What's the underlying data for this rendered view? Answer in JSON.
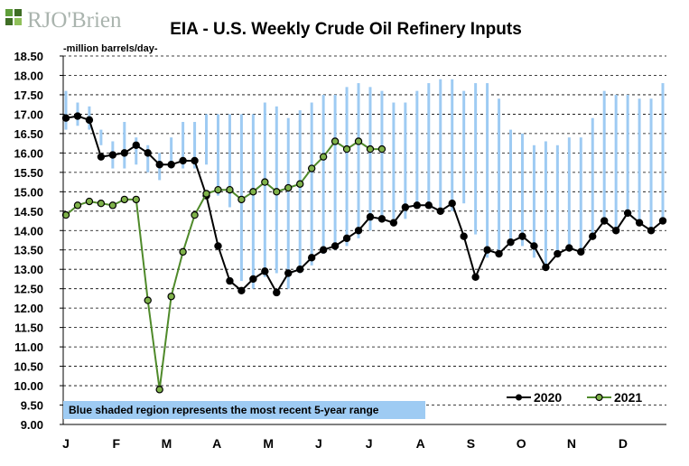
{
  "logo": {
    "text": "RJO'Brien"
  },
  "colors": {
    "range": "#9ecbf3",
    "series_2020": "#000000",
    "series_2021_line": "#4f8a2a",
    "series_2021_marker": "#7fb24a",
    "note_bg": "#9ecbf3"
  },
  "chart_data": {
    "type": "line",
    "title": "EIA - U.S. Weekly Crude Oil Refinery Inputs",
    "ylabel": "-million barrels/day-",
    "xlabel": "",
    "ylim": [
      9.0,
      18.5
    ],
    "ystep": 0.5,
    "ytick_labels": [
      "9.00",
      "9.50",
      "10.00",
      "10.50",
      "11.00",
      "11.50",
      "12.00",
      "12.50",
      "13.00",
      "13.50",
      "14.00",
      "14.50",
      "15.00",
      "15.50",
      "16.00",
      "16.50",
      "17.00",
      "17.50",
      "18.00",
      "18.50"
    ],
    "xtick_labels": [
      "J",
      "F",
      "M",
      "A",
      "M",
      "J",
      "J",
      "A",
      "S",
      "O",
      "N",
      "D"
    ],
    "xtick_weeks": [
      1,
      5.3,
      9.6,
      13.9,
      18.3,
      22.6,
      26.9,
      31.3,
      35.6,
      39.9,
      44.2,
      48.6
    ],
    "weeks": 52,
    "grid": true,
    "legend_position": "bottom-right",
    "annotation": "Blue shaded region represents the most recent 5-year range",
    "range_5yr": {
      "name": "5-year range",
      "low": [
        16.6,
        16.7,
        16.6,
        16.2,
        15.6,
        15.6,
        15.7,
        15.5,
        15.3,
        15.6,
        15.6,
        15.6,
        15.7,
        14.9,
        14.6,
        12.7,
        12.5,
        12.8,
        12.9,
        12.5,
        12.9,
        13.1,
        13.4,
        13.5,
        13.6,
        13.8,
        14.0,
        14.3,
        14.3,
        14.3,
        14.6,
        14.6,
        14.6,
        14.5,
        14.7,
        13.9,
        13.3,
        13.5,
        13.6,
        13.6,
        13.3,
        13.0,
        13.4,
        13.6,
        13.5,
        13.8,
        14.3,
        14.0,
        14.5,
        14.2,
        14.0,
        14.3
      ],
      "high": [
        17.6,
        17.3,
        17.2,
        16.6,
        16.3,
        16.8,
        16.4,
        16.2,
        16.0,
        16.4,
        16.8,
        16.8,
        17.0,
        17.0,
        17.0,
        17.0,
        17.0,
        17.3,
        17.2,
        16.9,
        17.1,
        17.3,
        17.5,
        17.5,
        17.7,
        17.8,
        17.7,
        17.6,
        17.3,
        17.3,
        17.6,
        17.8,
        17.9,
        17.9,
        17.6,
        17.8,
        17.8,
        17.4,
        16.6,
        16.5,
        16.2,
        16.3,
        16.2,
        16.4,
        16.4,
        16.9,
        17.6,
        17.5,
        17.5,
        17.4,
        17.4,
        17.8
      ]
    },
    "series": [
      {
        "name": "2020",
        "values": [
          16.9,
          16.95,
          16.85,
          15.9,
          15.95,
          16.0,
          16.2,
          16.0,
          15.7,
          15.7,
          15.8,
          15.8,
          14.9,
          13.6,
          12.7,
          12.45,
          12.75,
          12.95,
          12.4,
          12.9,
          13.0,
          13.3,
          13.5,
          13.6,
          13.8,
          14.0,
          14.35,
          14.3,
          14.2,
          14.6,
          14.65,
          14.65,
          14.5,
          14.7,
          13.85,
          12.8,
          13.5,
          13.4,
          13.7,
          13.85,
          13.6,
          13.05,
          13.4,
          13.55,
          13.45,
          13.85,
          14.25,
          14.0,
          14.45,
          14.2,
          14.0,
          14.25
        ]
      },
      {
        "name": "2021",
        "values": [
          14.4,
          14.65,
          14.75,
          14.7,
          14.65,
          14.8,
          14.8,
          12.2,
          9.9,
          12.3,
          13.45,
          14.4,
          14.95,
          15.05,
          15.05,
          14.8,
          15.0,
          15.25,
          15.0,
          15.1,
          15.2,
          15.6,
          15.9,
          16.3,
          16.1,
          16.3,
          16.1,
          16.1
        ]
      }
    ]
  }
}
